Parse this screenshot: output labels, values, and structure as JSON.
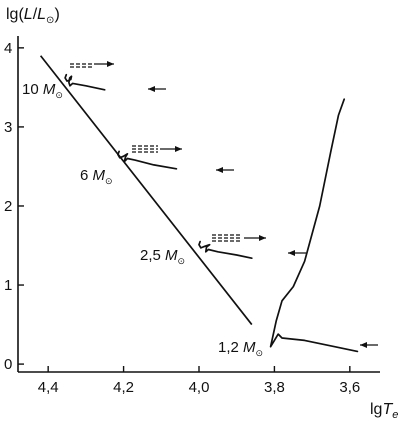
{
  "chart_data": {
    "type": "line",
    "title": "",
    "xlabel_prefix": "lg",
    "xlabel_var": "T",
    "xlabel_sub": "e",
    "ylabel_prefix": "lg(",
    "ylabel_var": "L",
    "ylabel_slash": "/",
    "ylabel_var2": "L",
    "ylabel_sub": "⊙",
    "ylabel_suffix": ")",
    "x_reversed": true,
    "xlim": [
      4.48,
      3.52
    ],
    "ylim": [
      -0.1,
      4.15
    ],
    "x_ticks": [
      4.4,
      4.2,
      4.0,
      3.8,
      3.6
    ],
    "x_tick_labels": [
      "4,4",
      "4,2",
      "4,0",
      "3,8",
      "3,6"
    ],
    "y_ticks": [
      0,
      1,
      2,
      3,
      4
    ],
    "y_tick_labels": [
      "0",
      "1",
      "2",
      "3",
      "4"
    ],
    "grid": false,
    "main_sequence": {
      "x": [
        4.42,
        3.86
      ],
      "y": [
        3.9,
        0.5
      ]
    },
    "series": [
      {
        "mass_number": "10",
        "mass_unit": "M",
        "mass_sub": "⊙",
        "x": [
          4.25,
          4.3,
          4.335,
          4.342,
          4.345,
          4.343,
          4.338,
          4.34,
          4.35,
          4.355,
          4.352
        ],
        "y": [
          3.47,
          3.52,
          3.55,
          3.52,
          3.56,
          3.62,
          3.64,
          3.6,
          3.58,
          3.62,
          3.66
        ]
      },
      {
        "mass_number": "6",
        "mass_unit": "M",
        "mass_sub": "⊙",
        "x": [
          4.06,
          4.12,
          4.17,
          4.19,
          4.198,
          4.195,
          4.19,
          4.2,
          4.21,
          4.215,
          4.212
        ],
        "y": [
          2.47,
          2.52,
          2.58,
          2.6,
          2.56,
          2.62,
          2.66,
          2.63,
          2.61,
          2.65,
          2.69
        ]
      },
      {
        "mass_number": "2,5",
        "mass_unit": "M",
        "mass_sub": "⊙",
        "x": [
          3.86,
          3.9,
          3.95,
          3.975,
          3.982,
          3.98,
          3.972,
          3.985,
          3.995,
          4.0,
          3.997
        ],
        "y": [
          1.34,
          1.38,
          1.42,
          1.45,
          1.42,
          1.48,
          1.51,
          1.49,
          1.47,
          1.51,
          1.55
        ]
      },
      {
        "mass_number": "1,2",
        "mass_unit": "M",
        "mass_sub": "⊙",
        "x": [
          3.58,
          3.64,
          3.72,
          3.78,
          3.79,
          3.8,
          3.81,
          3.795,
          3.78,
          3.75,
          3.72,
          3.68,
          3.65,
          3.63,
          3.615
        ],
        "y": [
          0.16,
          0.22,
          0.3,
          0.33,
          0.38,
          0.3,
          0.22,
          0.55,
          0.8,
          0.98,
          1.3,
          2.0,
          2.7,
          3.15,
          3.35
        ]
      }
    ]
  }
}
